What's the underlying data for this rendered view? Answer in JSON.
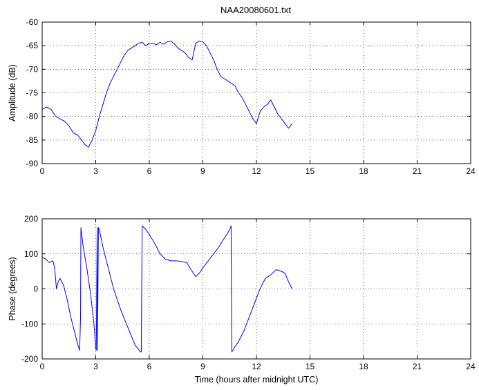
{
  "figure": {
    "title": "NAA20080601.txt"
  },
  "chart_data": [
    {
      "type": "line",
      "title": "NAA20080601.txt",
      "xlabel": "",
      "ylabel": "Amplitude (dB)",
      "xlim": [
        0,
        24
      ],
      "ylim": [
        -90,
        -60
      ],
      "xticks": [
        0,
        3,
        6,
        9,
        12,
        15,
        18,
        21,
        24
      ],
      "yticks": [
        -90,
        -85,
        -80,
        -75,
        -70,
        -65,
        -60
      ],
      "grid": "dotted",
      "line_color": "#0000ff",
      "series": [
        {
          "x": [
            0,
            0.25,
            0.5,
            0.75,
            1.0,
            1.25,
            1.5,
            1.75,
            2.0,
            2.2,
            2.4,
            2.6,
            2.8,
            3.0,
            3.2,
            3.4,
            3.6,
            3.8,
            4.0,
            4.2,
            4.4,
            4.6,
            4.8,
            5.0,
            5.2,
            5.4,
            5.6,
            5.8,
            6.0,
            6.2,
            6.4,
            6.6,
            6.8,
            7.0,
            7.2,
            7.4,
            7.6,
            7.8,
            8.0,
            8.2,
            8.4,
            8.6,
            8.8,
            9.0,
            9.2,
            9.4,
            9.6,
            9.8,
            10.0,
            10.2,
            10.4,
            10.6,
            10.8,
            11.0,
            11.2,
            11.4,
            11.6,
            11.8,
            12.0,
            12.2,
            12.4,
            12.6,
            12.8,
            13.0,
            13.2,
            13.4,
            13.6,
            13.8,
            14.0
          ],
          "y": [
            -78.5,
            -78.0,
            -78.5,
            -80.0,
            -80.5,
            -81.0,
            -82.0,
            -83.5,
            -84.0,
            -85.0,
            -86.0,
            -86.5,
            -85.0,
            -83.0,
            -80.0,
            -77.5,
            -75.0,
            -73.0,
            -71.5,
            -70.0,
            -68.5,
            -67.0,
            -66.0,
            -65.5,
            -65.0,
            -64.5,
            -64.3,
            -65.0,
            -64.5,
            -64.5,
            -64.8,
            -64.3,
            -64.7,
            -64.2,
            -64.0,
            -64.6,
            -65.5,
            -66.0,
            -66.5,
            -67.5,
            -68.0,
            -64.5,
            -64.0,
            -64.2,
            -65.0,
            -66.5,
            -68.0,
            -70.0,
            -71.5,
            -72.0,
            -72.5,
            -73.0,
            -73.5,
            -75.0,
            -76.0,
            -77.5,
            -79.0,
            -80.5,
            -81.5,
            -79.0,
            -78.0,
            -77.5,
            -76.5,
            -78.0,
            -79.5,
            -80.5,
            -81.5,
            -82.5,
            -81.5
          ]
        }
      ]
    },
    {
      "type": "line",
      "title": "",
      "xlabel": "Time (hours after midnight UTC)",
      "ylabel": "Phase (degrees)",
      "xlim": [
        0,
        24
      ],
      "ylim": [
        -200,
        200
      ],
      "xticks": [
        0,
        3,
        6,
        9,
        12,
        15,
        18,
        21,
        24
      ],
      "yticks": [
        -200,
        -100,
        0,
        100,
        200
      ],
      "grid": "dotted",
      "line_color": "#0000ff",
      "series": [
        {
          "x": [
            0,
            0.2,
            0.4,
            0.6,
            0.7,
            0.8,
            0.9,
            1.0,
            1.2,
            1.4,
            1.6,
            1.8,
            2.0,
            2.1,
            2.15,
            2.17,
            2.3,
            2.5,
            2.7,
            2.9,
            3.0,
            3.03,
            3.08,
            3.1,
            3.15,
            3.2,
            3.4,
            3.7,
            4.0,
            4.4,
            4.8,
            5.2,
            5.5,
            5.55,
            5.6,
            5.8,
            6.0,
            6.3,
            6.6,
            6.9,
            7.2,
            7.5,
            7.8,
            8.1,
            8.4,
            8.6,
            8.8,
            9.0,
            9.3,
            9.6,
            9.9,
            10.2,
            10.4,
            10.55,
            10.58,
            10.62,
            10.8,
            11.0,
            11.3,
            11.6,
            11.9,
            12.2,
            12.5,
            12.8,
            13.1,
            13.4,
            13.6,
            13.8,
            14.0
          ],
          "y": [
            90,
            85,
            75,
            80,
            60,
            0,
            20,
            30,
            10,
            -30,
            -80,
            -120,
            -160,
            -175,
            -80,
            175,
            120,
            60,
            -10,
            -100,
            -170,
            -175,
            175,
            -175,
            175,
            170,
            120,
            60,
            0,
            -60,
            -110,
            -160,
            -180,
            -180,
            180,
            170,
            155,
            130,
            100,
            85,
            80,
            80,
            78,
            75,
            50,
            35,
            45,
            60,
            80,
            100,
            120,
            145,
            160,
            175,
            180,
            -180,
            -165,
            -150,
            -120,
            -80,
            -40,
            0,
            30,
            40,
            55,
            50,
            45,
            20,
            0
          ]
        }
      ]
    }
  ]
}
